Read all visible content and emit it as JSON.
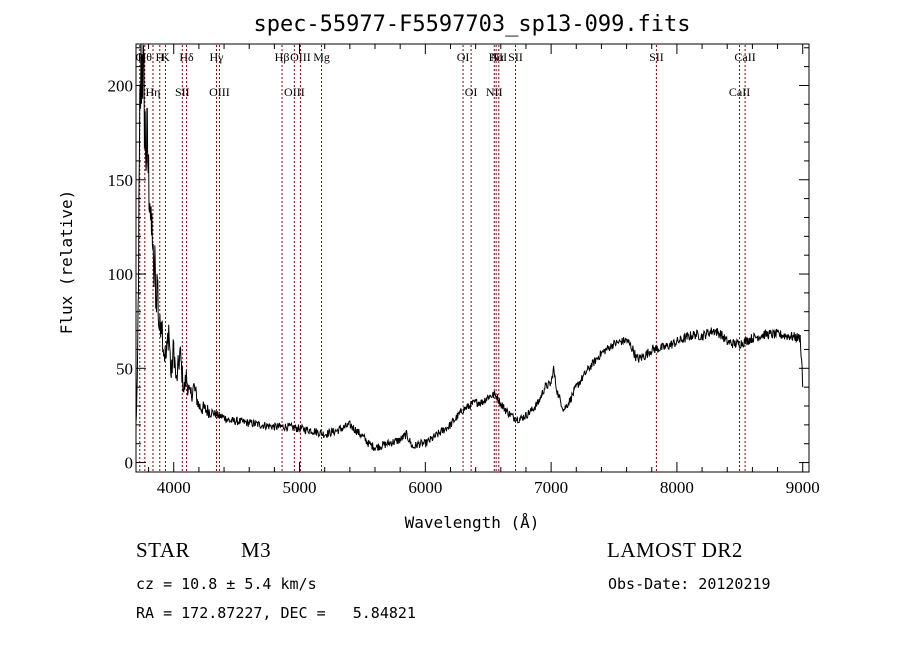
{
  "chart_data": {
    "type": "line",
    "title": "spec-55977-F5597703_sp13-099.fits",
    "xlabel": "Wavelength (Å)",
    "ylabel": "Flux (relative)",
    "xlim": [
      3700,
      9050
    ],
    "ylim": [
      -5,
      222
    ],
    "xticks": [
      4000,
      5000,
      6000,
      7000,
      8000,
      9000
    ],
    "yticks": [
      0,
      50,
      100,
      150,
      200
    ],
    "xminor_step": 200,
    "yminor_step": 10,
    "grid": false,
    "series": [
      {
        "x": [
          3700,
          3710,
          3720,
          3730,
          3740,
          3750,
          3760,
          3770,
          3780,
          3790,
          3800,
          3810,
          3820,
          3830,
          3840,
          3850,
          3860,
          3870,
          3880,
          3890,
          3900,
          3920,
          3940,
          3960,
          3980,
          4000,
          4020,
          4050,
          4080,
          4100,
          4130,
          4160,
          4200,
          4250,
          4300,
          4350,
          4400,
          4450,
          4500,
          4600,
          4700,
          4800,
          4900,
          5000,
          5100,
          5200,
          5300,
          5400,
          5500,
          5550,
          5600,
          5650,
          5700,
          5800,
          5850,
          5900,
          5950,
          6000,
          6100,
          6200,
          6250,
          6300,
          6350,
          6400,
          6450,
          6500,
          6550,
          6570,
          6600,
          6650,
          6700,
          6750,
          6800,
          6850,
          6900,
          6950,
          7000,
          7020,
          7040,
          7060,
          7080,
          7100,
          7150,
          7200,
          7300,
          7400,
          7500,
          7600,
          7650,
          7680,
          7700,
          7750,
          7800,
          7900,
          8000,
          8100,
          8150,
          8200,
          8250,
          8300,
          8350,
          8400,
          8450,
          8500,
          8600,
          8700,
          8800,
          8900,
          8980,
          8995,
          9000
        ],
        "values": [
          20,
          40,
          100,
          180,
          205,
          215,
          200,
          180,
          165,
          170,
          150,
          145,
          120,
          125,
          95,
          105,
          85,
          100,
          75,
          70,
          80,
          60,
          55,
          72,
          45,
          62,
          42,
          58,
          38,
          45,
          35,
          40,
          30,
          28,
          27,
          25,
          24,
          22,
          22,
          21,
          20,
          19,
          19,
          18,
          17,
          15,
          17,
          20,
          14,
          10,
          8,
          9,
          10,
          12,
          15,
          8,
          10,
          10,
          15,
          20,
          24,
          28,
          30,
          32,
          32,
          35,
          36,
          35,
          31,
          27,
          24,
          23,
          25,
          28,
          32,
          40,
          42,
          50,
          40,
          35,
          32,
          28,
          33,
          40,
          50,
          58,
          63,
          65,
          60,
          55,
          55,
          57,
          60,
          61,
          64,
          67,
          68,
          67,
          69,
          70,
          68,
          64,
          63,
          63,
          66,
          68,
          68,
          67,
          66,
          50,
          40
        ]
      }
    ],
    "line_markers": {
      "top": [
        {
          "x": 3730,
          "label": "O"
        },
        {
          "x": 3770,
          "label": "Hθ"
        },
        {
          "x": 3889,
          "label": "H"
        },
        {
          "x": 3934,
          "label": "K"
        },
        {
          "x": 4102,
          "label": "Hδ"
        },
        {
          "x": 4340,
          "label": "Hγ"
        },
        {
          "x": 4861,
          "label": "Hβ"
        },
        {
          "x": 5007,
          "label": "OIII"
        },
        {
          "x": 5175,
          "label": "Mg"
        },
        {
          "x": 6300,
          "label": "OI"
        },
        {
          "x": 6563,
          "label": "Hα"
        },
        {
          "x": 6584,
          "label": "NII"
        },
        {
          "x": 6717,
          "label": "SII"
        },
        {
          "x": 7837,
          "label": "SII"
        },
        {
          "x": 8542,
          "label": "CaII"
        }
      ],
      "bottom": [
        {
          "x": 3835,
          "label": "Hη"
        },
        {
          "x": 4068,
          "label": "SII"
        },
        {
          "x": 4363,
          "label": "OIII"
        },
        {
          "x": 4959,
          "label": "OIII"
        },
        {
          "x": 6364,
          "label": "OI"
        },
        {
          "x": 6548,
          "label": "NII"
        },
        {
          "x": 8498,
          "label": "CaII"
        }
      ]
    }
  },
  "info": {
    "class": "STAR",
    "subclass": "M3",
    "survey": "LAMOST DR2",
    "cz": "cz = 10.8 ± 5.4 km/s",
    "obs_date": "Obs-Date: 20120219",
    "radec": "RA = 172.87227, DEC =   5.84821"
  },
  "colors": {
    "spectrum": "#000000",
    "marker_line": "#8b0000",
    "background": "#ffffff"
  }
}
